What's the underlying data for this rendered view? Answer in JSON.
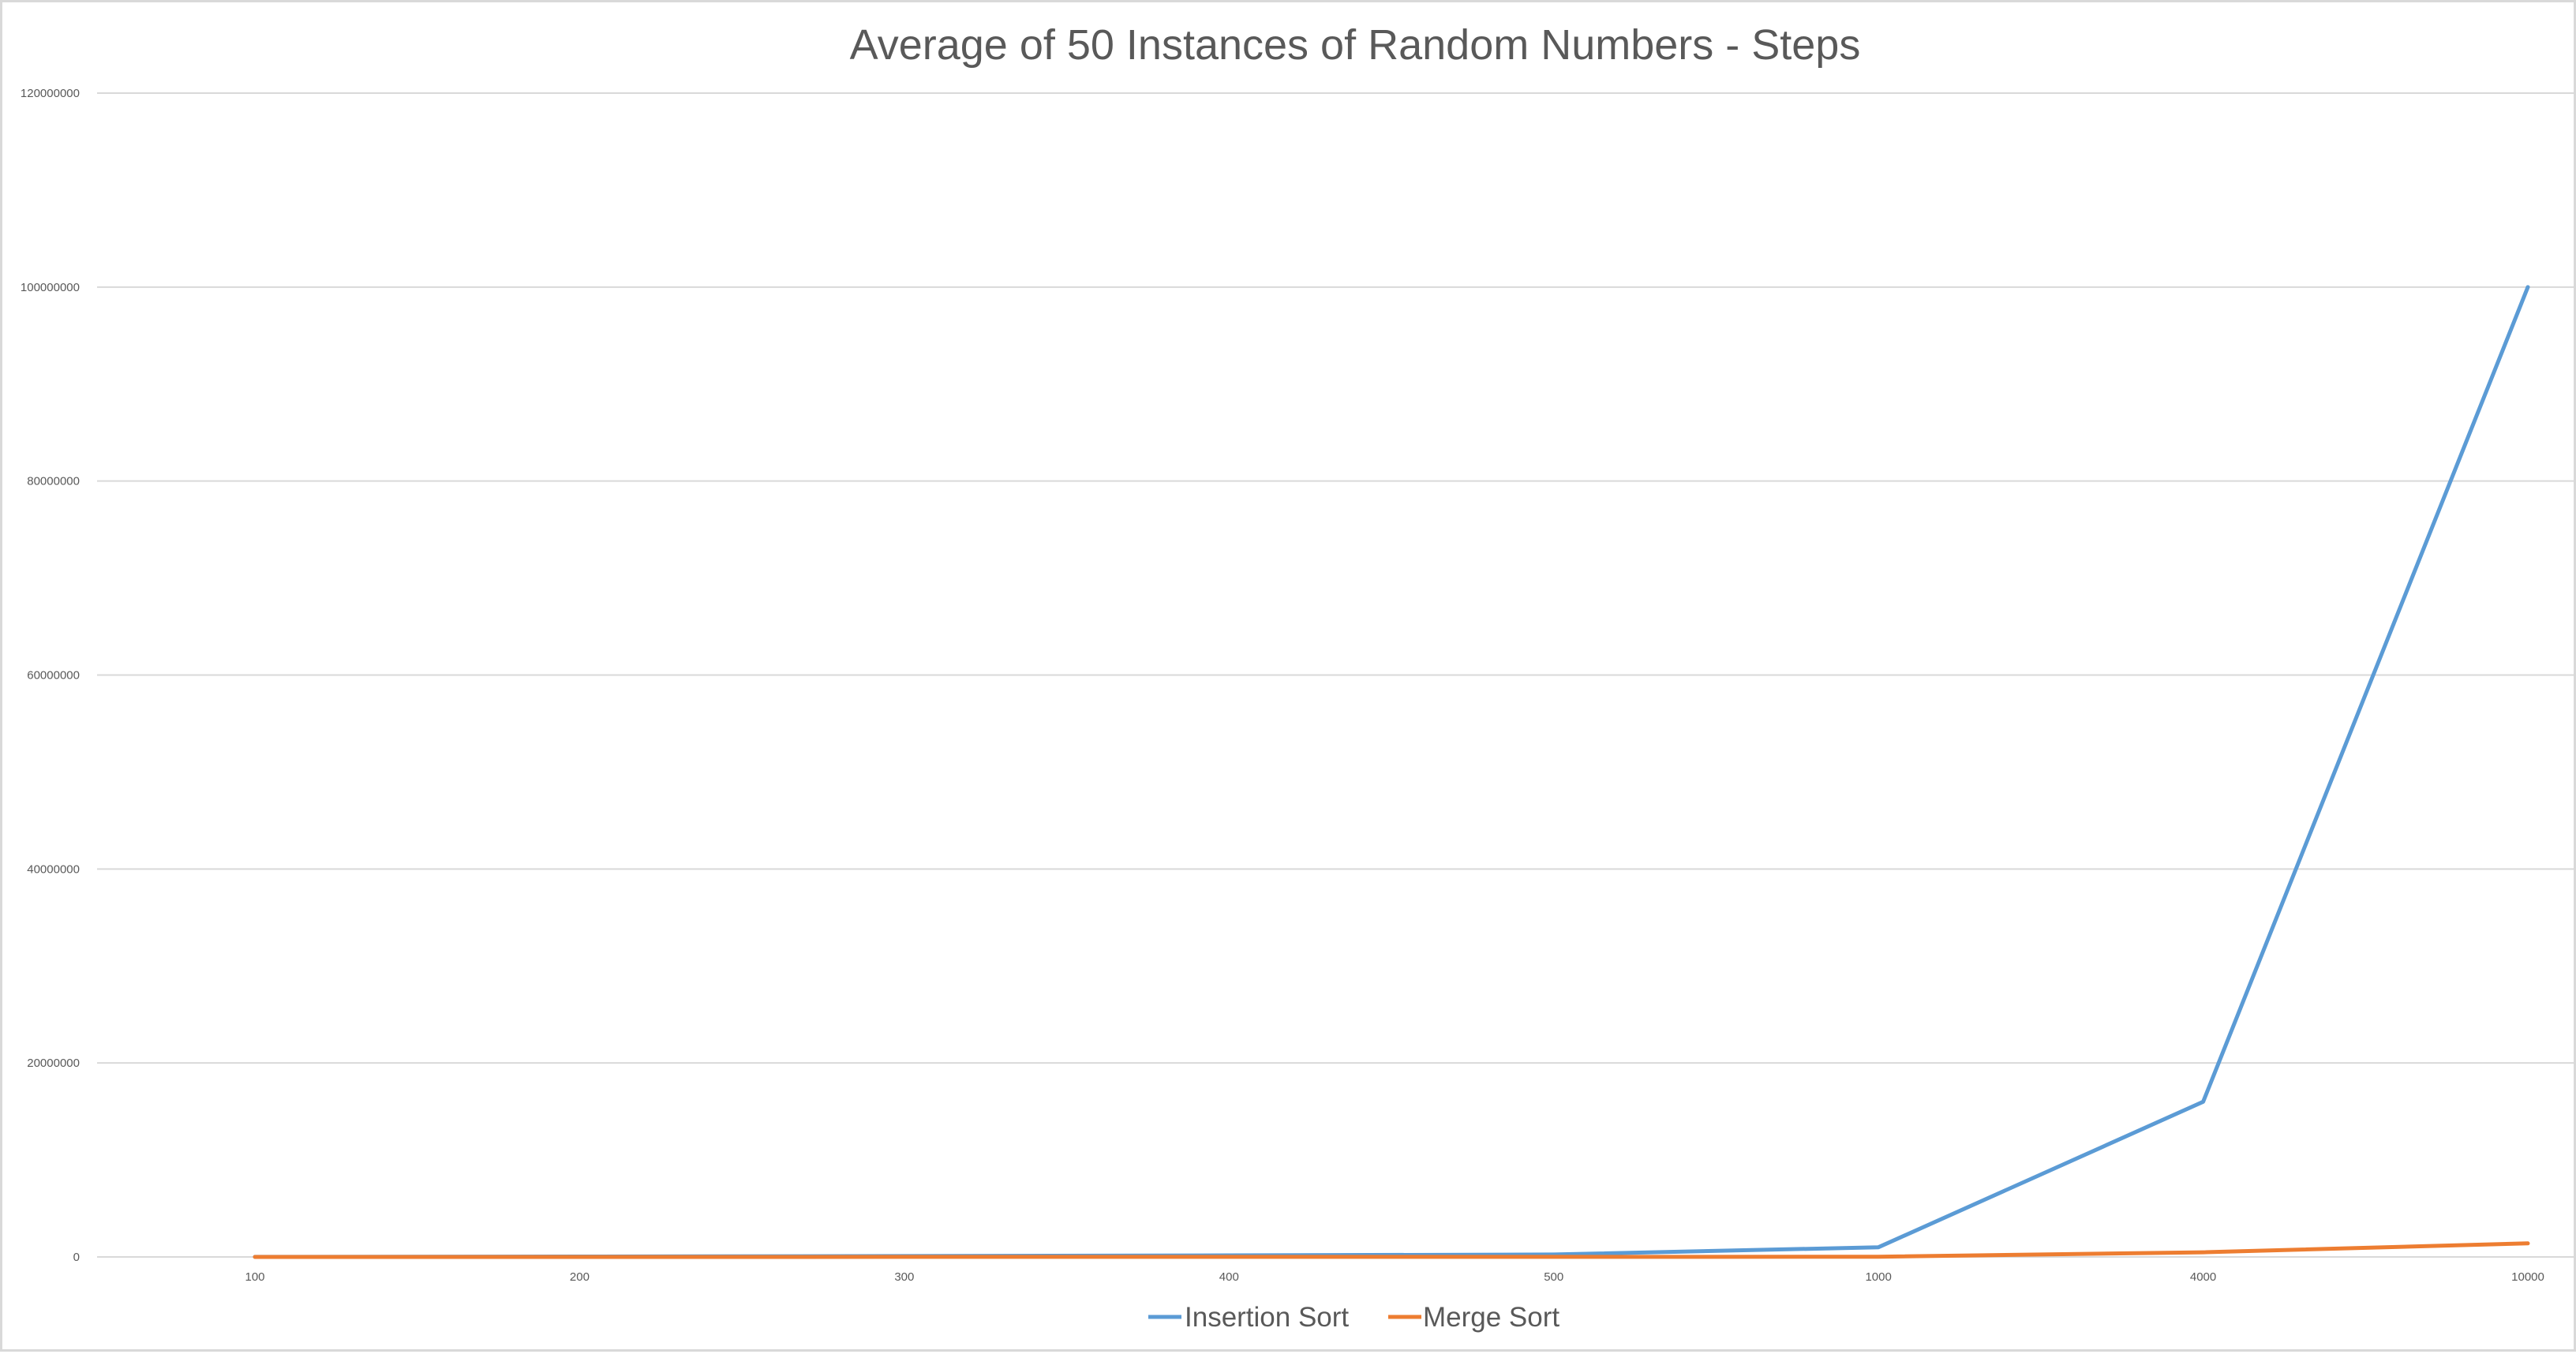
{
  "chart_data": {
    "type": "line",
    "title": "Average of 50 Instances of Random Numbers - Steps",
    "xlabel": "",
    "ylabel": "",
    "categories": [
      "100",
      "200",
      "300",
      "400",
      "500",
      "1000",
      "4000",
      "10000"
    ],
    "ylim": [
      0,
      120000000
    ],
    "yticks": [
      "0",
      "20000000",
      "40000000",
      "60000000",
      "80000000",
      "100000000",
      "120000000"
    ],
    "grid": true,
    "legend_position": "bottom",
    "series": [
      {
        "name": "Insertion Sort",
        "color": "#5b9bd5",
        "values": [
          10000,
          40000,
          90000,
          160000,
          250000,
          1000000,
          16000000,
          100000000
        ]
      },
      {
        "name": "Merge Sort",
        "color": "#ed7d31",
        "values": [
          1400,
          3200,
          5200,
          7300,
          9500,
          20000,
          480000,
          1400000
        ]
      }
    ]
  }
}
